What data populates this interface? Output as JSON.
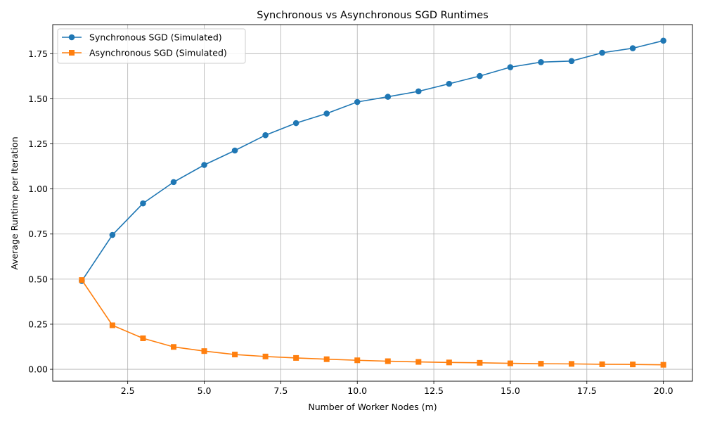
{
  "chart_data": {
    "type": "line",
    "title": "Synchronous vs Asynchronous SGD Runtimes",
    "xlabel": "Number of Worker Nodes (m)",
    "ylabel": "Average Runtime per Iteration",
    "xlim": [
      0.05,
      20.95
    ],
    "ylim": [
      -0.066,
      1.911
    ],
    "grid": true,
    "legend_position": "top-left",
    "x_ticks": [
      2.5,
      5.0,
      7.5,
      10.0,
      12.5,
      15.0,
      17.5,
      20.0
    ],
    "x_tick_labels": [
      "2.5",
      "5.0",
      "7.5",
      "10.0",
      "12.5",
      "15.0",
      "17.5",
      "20.0"
    ],
    "y_ticks": [
      0.0,
      0.25,
      0.5,
      0.75,
      1.0,
      1.25,
      1.5,
      1.75
    ],
    "y_tick_labels": [
      "0.00",
      "0.25",
      "0.50",
      "0.75",
      "1.00",
      "1.25",
      "1.50",
      "1.75"
    ],
    "x": [
      1,
      2,
      3,
      4,
      5,
      6,
      7,
      8,
      9,
      10,
      11,
      12,
      13,
      14,
      15,
      16,
      17,
      18,
      19,
      20
    ],
    "series": [
      {
        "name": "Synchronous SGD (Simulated)",
        "color": "#1f77b4",
        "marker": "circle",
        "values": [
          0.49,
          0.745,
          0.92,
          1.038,
          1.133,
          1.213,
          1.298,
          1.365,
          1.418,
          1.482,
          1.511,
          1.541,
          1.583,
          1.626,
          1.675,
          1.703,
          1.709,
          1.755,
          1.78,
          1.822
        ]
      },
      {
        "name": "Asynchronous SGD (Simulated)",
        "color": "#ff7f0e",
        "marker": "square",
        "values": [
          0.495,
          0.244,
          0.172,
          0.124,
          0.101,
          0.082,
          0.071,
          0.063,
          0.056,
          0.05,
          0.045,
          0.041,
          0.038,
          0.036,
          0.033,
          0.031,
          0.03,
          0.028,
          0.027,
          0.025
        ]
      }
    ]
  }
}
